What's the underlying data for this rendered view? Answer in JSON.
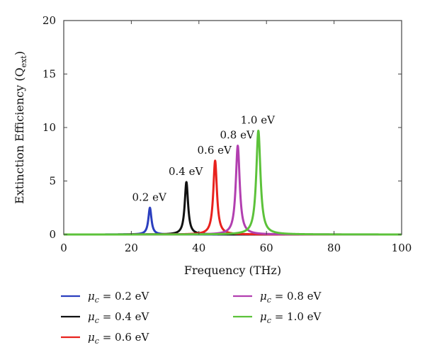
{
  "chart_data": {
    "type": "line",
    "title": "",
    "xlabel": "Frequency (THz)",
    "ylabel_main": "Extinction Efficiency (Q",
    "ylabel_sub": "ext",
    "ylabel_close": ")",
    "xlim": [
      0,
      100
    ],
    "ylim": [
      0,
      20
    ],
    "xticks": [
      0,
      20,
      40,
      60,
      80,
      100
    ],
    "yticks": [
      0,
      5,
      10,
      15,
      20
    ],
    "grid": false,
    "legend_position": "below",
    "series": [
      {
        "key": "mu02",
        "legend_symbol": "μ",
        "legend_sub": "c",
        "legend_text": " = 0.2 eV",
        "peak_label": "0.2 eV",
        "color": "#2b3fbf",
        "peak_x": 25.5,
        "peak_y": 2.5,
        "width": 0.55
      },
      {
        "key": "mu04",
        "legend_symbol": "μ",
        "legend_sub": "c",
        "legend_text": " = 0.4 eV",
        "peak_label": "0.4 eV",
        "color": "#111111",
        "peak_x": 36.3,
        "peak_y": 4.9,
        "width": 0.6
      },
      {
        "key": "mu06",
        "legend_symbol": "μ",
        "legend_sub": "c",
        "legend_text": " = 0.6 eV",
        "peak_label": "0.6 eV",
        "color": "#e8221e",
        "peak_x": 44.8,
        "peak_y": 6.9,
        "width": 0.65
      },
      {
        "key": "mu08",
        "legend_symbol": "μ",
        "legend_sub": "c",
        "legend_text": " = 0.8 eV",
        "peak_label": "0.8 eV",
        "color": "#b23fb0",
        "peak_x": 51.5,
        "peak_y": 8.3,
        "width": 0.7
      },
      {
        "key": "mu10",
        "legend_symbol": "μ",
        "legend_sub": "c",
        "legend_text": " = 1.0 eV",
        "peak_label": "1.0 eV",
        "color": "#5cc23a",
        "peak_x": 57.6,
        "peak_y": 9.7,
        "width": 0.75
      }
    ]
  }
}
